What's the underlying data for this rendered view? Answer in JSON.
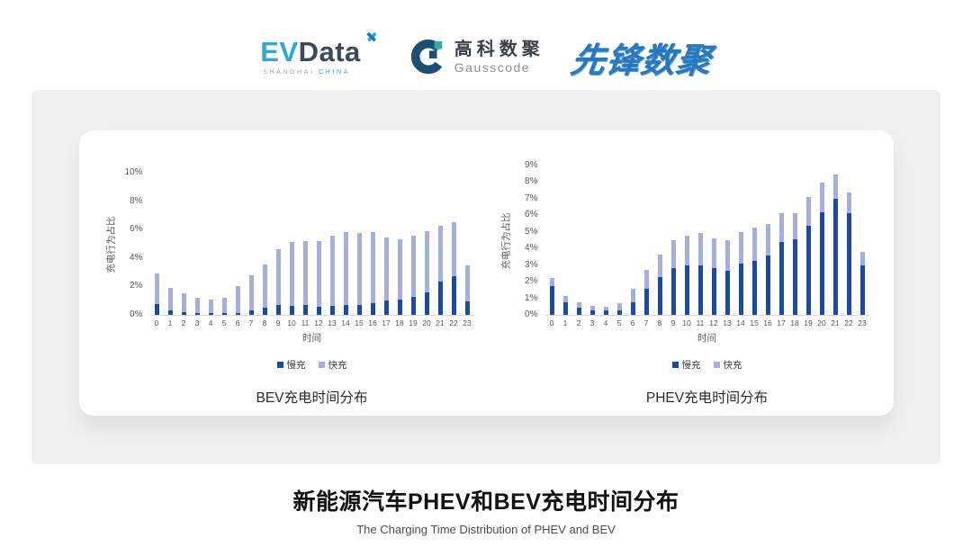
{
  "header": {
    "evdata": {
      "ev": "EV",
      "data": "Data",
      "sub_left": "SHANGHAI",
      "sub_right": "CHINA"
    },
    "gausscode": {
      "cn": "高科数聚",
      "en": "Gausscode"
    },
    "xianfeng": "先锋数聚"
  },
  "footer": {
    "title": "新能源汽车PHEV和BEV充电时间分布",
    "subtitle": "The Charging Time Distribution of PHEV and BEV"
  },
  "colors": {
    "slow_charge": "#1B4AA2",
    "fast_charge": "#A6AEDB",
    "axis_text": "#595959",
    "evdata_blue": "#2AA9E0",
    "evdata_dark": "#3A4A5C",
    "gausscode_navy": "#1D4E73",
    "gausscode_teal": "#2FAE9E",
    "xianfeng_blue": "#2878C0"
  },
  "chart_data": [
    {
      "type": "bar",
      "stacked": true,
      "title": "BEV充电时间分布",
      "xlabel": "时间",
      "ylabel": "充电行为占比",
      "ylim": [
        0,
        10
      ],
      "y_ticks": [
        0,
        2,
        4,
        6,
        8,
        10
      ],
      "grid": false,
      "legend_position": "bottom",
      "categories": [
        0,
        1,
        2,
        3,
        4,
        5,
        6,
        7,
        8,
        9,
        10,
        11,
        12,
        13,
        14,
        15,
        16,
        17,
        18,
        19,
        20,
        21,
        22,
        23
      ],
      "series": [
        {
          "name": "慢充",
          "color": "#1B4AA2",
          "values": [
            0.75,
            0.35,
            0.2,
            0.1,
            0.1,
            0.1,
            0.15,
            0.35,
            0.5,
            0.7,
            0.65,
            0.7,
            0.6,
            0.65,
            0.7,
            0.7,
            0.8,
            1.0,
            1.1,
            1.3,
            1.6,
            2.35,
            2.75,
            0.95
          ]
        },
        {
          "name": "快充",
          "color": "#A6AEDB",
          "values": [
            2.15,
            1.55,
            1.3,
            1.1,
            1.0,
            1.1,
            1.85,
            2.45,
            3.05,
            3.9,
            4.5,
            4.5,
            4.6,
            4.95,
            5.1,
            5.05,
            5.0,
            4.45,
            4.2,
            4.25,
            4.3,
            3.95,
            3.75,
            2.55
          ]
        }
      ]
    },
    {
      "type": "bar",
      "stacked": true,
      "title": "PHEV充电时间分布",
      "xlabel": "时间",
      "ylabel": "充电行为占比",
      "ylim": [
        0,
        9
      ],
      "y_ticks": [
        0,
        1,
        2,
        3,
        4,
        5,
        6,
        7,
        8,
        9
      ],
      "grid": false,
      "legend_position": "bottom",
      "categories": [
        0,
        1,
        2,
        3,
        4,
        5,
        6,
        7,
        8,
        9,
        10,
        11,
        12,
        13,
        14,
        15,
        16,
        17,
        18,
        19,
        20,
        21,
        22,
        23
      ],
      "series": [
        {
          "name": "慢充",
          "color": "#1B4AA2",
          "values": [
            1.75,
            0.75,
            0.45,
            0.25,
            0.25,
            0.3,
            0.75,
            1.6,
            2.3,
            2.8,
            3.0,
            3.0,
            2.8,
            2.65,
            3.1,
            3.25,
            3.6,
            4.4,
            4.55,
            5.35,
            6.2,
            7.0,
            6.15,
            3.0
          ]
        },
        {
          "name": "快充",
          "color": "#A6AEDB",
          "values": [
            0.45,
            0.4,
            0.3,
            0.3,
            0.25,
            0.4,
            0.85,
            1.1,
            1.35,
            1.7,
            1.8,
            1.95,
            1.8,
            1.85,
            1.9,
            2.0,
            1.9,
            1.75,
            1.6,
            1.75,
            1.75,
            1.45,
            1.25,
            0.8
          ]
        }
      ]
    }
  ]
}
